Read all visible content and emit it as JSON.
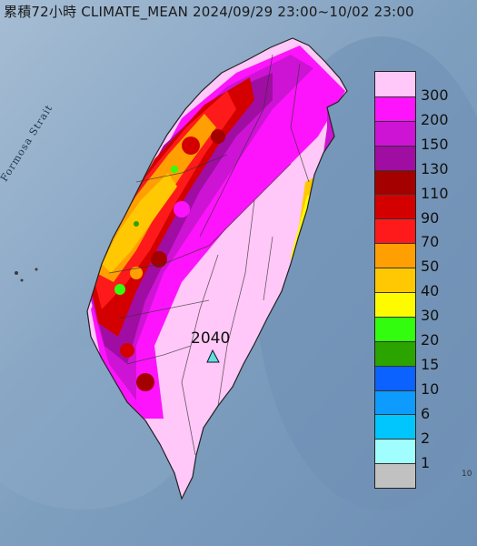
{
  "title": "累積72小時 CLIMATE_MEAN 2024/09/29 23:00~10/02 23:00",
  "strait_label": "Formosa Strait",
  "station": {
    "value": "2040",
    "marker": "triangle-marker-icon",
    "color": "#5fe0d8"
  },
  "corner_text": "10",
  "legend": [
    {
      "label": "300",
      "color": "#ffc8f8"
    },
    {
      "label": "200",
      "color": "#fd14fc"
    },
    {
      "label": "150",
      "color": "#cd14d4"
    },
    {
      "label": "130",
      "color": "#a00da3"
    },
    {
      "label": "110",
      "color": "#a50000"
    },
    {
      "label": "90",
      "color": "#d40000"
    },
    {
      "label": "70",
      "color": "#fe1a1a"
    },
    {
      "label": "50",
      "color": "#ff9f02"
    },
    {
      "label": "40",
      "color": "#ffc802"
    },
    {
      "label": "30",
      "color": "#fefb00"
    },
    {
      "label": "20",
      "color": "#33fd0f"
    },
    {
      "label": "15",
      "color": "#2ba400"
    },
    {
      "label": "10",
      "color": "#0b62fe"
    },
    {
      "label": "6",
      "color": "#0d9bfe"
    },
    {
      "label": "2",
      "color": "#00c6fd"
    },
    {
      "label": "1",
      "color": "#a0fefe"
    },
    {
      "label": "",
      "color": "#c1c1c1"
    }
  ]
}
